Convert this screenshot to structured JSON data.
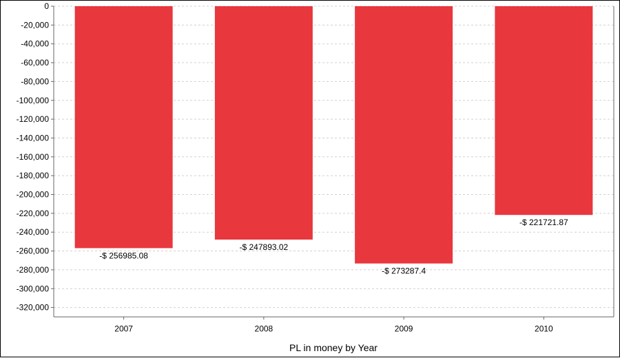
{
  "chart_data": {
    "type": "bar",
    "categories": [
      "2007",
      "2008",
      "2009",
      "2010"
    ],
    "values": [
      -256985.08,
      -247893.02,
      -273287.4,
      -221721.87
    ],
    "data_labels": [
      "-$ 256985.08",
      "-$ 247893.02",
      "-$ 273287.4",
      "-$ 221721.87"
    ],
    "xlabel": "PL in money by Year",
    "ylabel": "",
    "ylim": [
      -330000,
      0
    ],
    "yticks": [
      0,
      -20000,
      -40000,
      -60000,
      -80000,
      -100000,
      -120000,
      -140000,
      -160000,
      -180000,
      -200000,
      -220000,
      -240000,
      -260000,
      -280000,
      -300000,
      -320000
    ],
    "ytick_labels": [
      "0",
      "-20,000",
      "-40,000",
      "-60,000",
      "-80,000",
      "-100,000",
      "-120,000",
      "-140,000",
      "-160,000",
      "-180,000",
      "-200,000",
      "-220,000",
      "-240,000",
      "-260,000",
      "-280,000",
      "-300,000",
      "-320,000"
    ],
    "grid": true,
    "bar_color": "#e8373d",
    "grid_color": "#d0d0d0"
  }
}
